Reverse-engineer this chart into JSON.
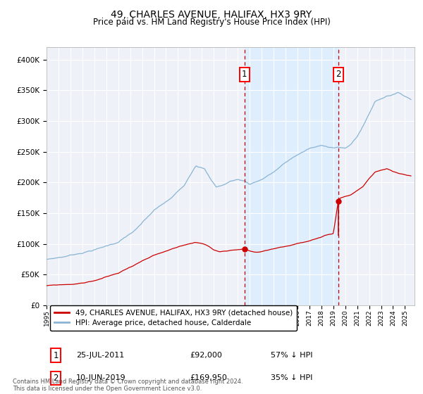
{
  "title": "49, CHARLES AVENUE, HALIFAX, HX3 9RY",
  "subtitle": "Price paid vs. HM Land Registry's House Price Index (HPI)",
  "hpi_color": "#8ab4d4",
  "price_color": "#cc0000",
  "shade_color": "#ddeeff",
  "marker1_year": 2011.56,
  "marker1_price": 92000,
  "marker2_year": 2019.44,
  "marker2_price": 169950,
  "ylim": [
    0,
    420000
  ],
  "xlim_start": 1995.0,
  "xlim_end": 2025.8,
  "yticks": [
    0,
    50000,
    100000,
    150000,
    200000,
    250000,
    300000,
    350000,
    400000
  ],
  "ytick_labels": [
    "£0",
    "£50K",
    "£100K",
    "£150K",
    "£200K",
    "£250K",
    "£300K",
    "£350K",
    "£400K"
  ],
  "xticks": [
    1995,
    1996,
    1997,
    1998,
    1999,
    2000,
    2001,
    2002,
    2003,
    2004,
    2005,
    2006,
    2007,
    2008,
    2009,
    2010,
    2011,
    2012,
    2013,
    2014,
    2015,
    2016,
    2017,
    2018,
    2019,
    2020,
    2021,
    2022,
    2023,
    2024,
    2025
  ],
  "legend_line1": "49, CHARLES AVENUE, HALIFAX, HX3 9RY (detached house)",
  "legend_line2": "HPI: Average price, detached house, Calderdale",
  "note1_label": "1",
  "note1_date": "25-JUL-2011",
  "note1_price": "£92,000",
  "note1_hpi": "57% ↓ HPI",
  "note2_label": "2",
  "note2_date": "10-JUN-2019",
  "note2_price": "£169,950",
  "note2_hpi": "35% ↓ HPI",
  "footer": "Contains HM Land Registry data © Crown copyright and database right 2024.\nThis data is licensed under the Open Government Licence v3.0.",
  "background_color": "#eef2f8",
  "grid_color": "#ffffff"
}
